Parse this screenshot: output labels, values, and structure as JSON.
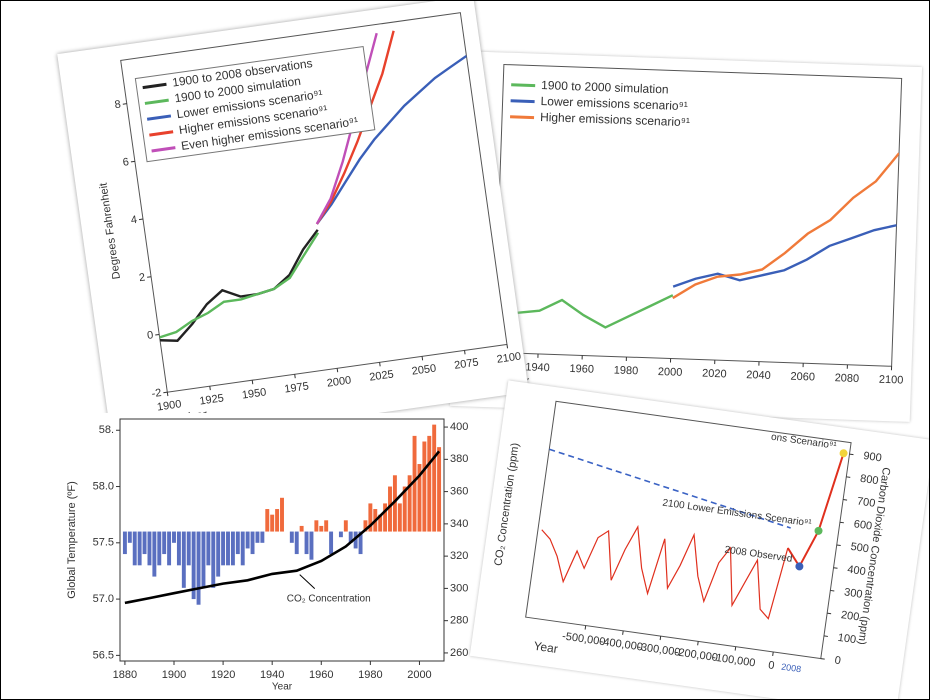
{
  "chart_data": [
    {
      "type": "line",
      "y_label": "Degrees Fahrenheit",
      "x_label": "Year",
      "x": [
        1900,
        1910,
        1920,
        1930,
        1940,
        1950,
        1960,
        1970,
        1980,
        1990,
        2000,
        2010,
        2020,
        2030,
        2040,
        2050,
        2060,
        2070,
        2080,
        2090,
        2100
      ],
      "xlim": [
        1900,
        2100
      ],
      "xticks": [
        1900,
        1925,
        1950,
        1975,
        2000,
        2025,
        2050,
        2075,
        2100
      ],
      "ylim": [
        -2,
        9.5
      ],
      "yticks": [
        -2,
        0,
        2,
        4,
        6,
        8
      ],
      "series": [
        {
          "name": "1900 to 2008 observations",
          "color": "#222222",
          "values": [
            -0.2,
            -0.3,
            0.2,
            0.8,
            1.2,
            0.9,
            0.9,
            1.0,
            1.4,
            2.2,
            2.8,
            null,
            null,
            null,
            null,
            null,
            null,
            null,
            null,
            null,
            null
          ]
        },
        {
          "name": "1900 to 2000 simulation",
          "color": "#5cb85c",
          "values": [
            -0.1,
            0,
            0.3,
            0.5,
            0.8,
            0.8,
            0.9,
            1.0,
            1.3,
            2.0,
            2.7,
            null,
            null,
            null,
            null,
            null,
            null,
            null,
            null,
            null,
            null
          ]
        },
        {
          "name": "Lower emissions scenario⁹¹",
          "color": "#3a5fb8",
          "values": [
            null,
            null,
            null,
            null,
            null,
            null,
            null,
            null,
            null,
            null,
            3.0,
            3.6,
            4.3,
            5.0,
            5.6,
            6.1,
            6.6,
            7.0,
            7.4,
            7.7,
            8.0
          ]
        },
        {
          "name": "Higher emissions scenario⁹¹",
          "color": "#e8412c",
          "values": [
            null,
            null,
            null,
            null,
            null,
            null,
            null,
            null,
            null,
            null,
            3.0,
            3.7,
            4.6,
            5.6,
            6.7,
            7.8,
            9.2,
            null,
            null,
            null,
            null
          ]
        },
        {
          "name": "Even higher emissions scenario⁹¹",
          "color": "#c04fb8",
          "values": [
            null,
            null,
            null,
            null,
            null,
            null,
            null,
            null,
            null,
            null,
            3.0,
            3.8,
            5.0,
            6.4,
            7.8,
            9.2,
            null,
            null,
            null,
            null,
            null
          ]
        }
      ]
    },
    {
      "type": "line",
      "x_label": "Year",
      "x": [
        1920,
        1930,
        1940,
        1950,
        1960,
        1970,
        1980,
        1990,
        2000,
        2010,
        2020,
        2030,
        2040,
        2050,
        2060,
        2070,
        2080,
        2090,
        2100
      ],
      "xlim": [
        1920,
        2100
      ],
      "xticks": [
        1920,
        1940,
        1960,
        1980,
        2000,
        2020,
        2040,
        2060,
        2080,
        2100
      ],
      "ylim": [
        0,
        10
      ],
      "series": [
        {
          "name": "1900 to 2000 simulation",
          "color": "#5cb85c",
          "values": [
            null,
            1.4,
            1.5,
            1.9,
            1.4,
            1.0,
            1.4,
            1.8,
            2.2,
            null,
            null,
            null,
            null,
            null,
            null,
            null,
            null,
            null,
            null
          ]
        },
        {
          "name": "Lower emissions scenario⁹¹",
          "color": "#3a5fb8",
          "values": [
            null,
            null,
            null,
            null,
            null,
            null,
            null,
            null,
            2.5,
            2.8,
            3.0,
            2.8,
            3.0,
            3.2,
            3.6,
            4.1,
            4.4,
            4.7,
            4.9
          ]
        },
        {
          "name": "Higher emissions scenario⁹¹",
          "color": "#f07a3a",
          "values": [
            null,
            null,
            null,
            null,
            null,
            null,
            null,
            null,
            2.1,
            2.6,
            2.9,
            3.0,
            3.2,
            3.8,
            4.5,
            5.0,
            5.8,
            6.4,
            7.4
          ]
        }
      ]
    },
    {
      "type": "bar",
      "y_label": "Global Temperature (ºF)",
      "x_label": "Year",
      "categories": [
        1880,
        1882,
        1884,
        1886,
        1888,
        1890,
        1892,
        1894,
        1896,
        1898,
        1900,
        1902,
        1904,
        1906,
        1908,
        1910,
        1912,
        1914,
        1916,
        1918,
        1920,
        1922,
        1924,
        1926,
        1928,
        1930,
        1932,
        1934,
        1936,
        1938,
        1940,
        1942,
        1944,
        1946,
        1948,
        1950,
        1952,
        1954,
        1956,
        1958,
        1960,
        1962,
        1964,
        1966,
        1968,
        1970,
        1972,
        1974,
        1976,
        1978,
        1980,
        1982,
        1984,
        1986,
        1988,
        1990,
        1992,
        1994,
        1996,
        1998,
        2000,
        2002,
        2004,
        2006,
        2008
      ],
      "values": [
        57.4,
        57.5,
        57.3,
        57.3,
        57.4,
        57.3,
        57.2,
        57.3,
        57.4,
        57.3,
        57.5,
        57.3,
        57.1,
        57.3,
        57.0,
        56.95,
        57.1,
        57.3,
        57.1,
        57.2,
        57.3,
        57.3,
        57.3,
        57.4,
        57.3,
        57.45,
        57.4,
        57.5,
        57.5,
        57.8,
        57.75,
        57.8,
        57.9,
        57.6,
        57.5,
        57.4,
        57.65,
        57.4,
        57.35,
        57.7,
        57.65,
        57.7,
        57.4,
        57.6,
        57.55,
        57.7,
        57.5,
        57.45,
        57.4,
        57.7,
        57.85,
        57.8,
        57.75,
        57.85,
        58.0,
        58.1,
        57.85,
        58.0,
        58.1,
        58.45,
        58.2,
        58.4,
        58.45,
        58.55,
        58.35
      ],
      "baseline": 57.6,
      "color_below": "#5a6fc0",
      "color_above": "#f06a3c",
      "xlim": [
        1878,
        2010
      ],
      "xticks": [
        1880,
        1900,
        1920,
        1940,
        1960,
        1980,
        2000
      ],
      "ylim": [
        56.45,
        58.6
      ],
      "yticks": [
        56.5,
        {
          "value": 57,
          "label": "57.0"
        },
        57.5,
        {
          "value": 58,
          "label": "58.0"
        },
        {
          "value": 58.5,
          "label": "58."
        }
      ],
      "y2lim": [
        255,
        405
      ],
      "y2ticks": [
        260,
        280,
        300,
        320,
        340,
        360,
        380,
        400
      ],
      "line_series": {
        "name": "CO₂ Concentration",
        "color": "#000000",
        "axis": "y2",
        "x": [
          1880,
          1890,
          1900,
          1910,
          1920,
          1930,
          1940,
          1950,
          1960,
          1970,
          1980,
          1990,
          2000,
          2008
        ],
        "values": [
          291,
          294,
          297,
          300,
          303,
          305,
          309,
          311,
          317,
          326,
          339,
          354,
          370,
          385
        ]
      }
    },
    {
      "type": "line",
      "y_label": "CO₂ Concentration (ppm)",
      "y2_label": "Carbon Dioxide Concentration (ppm)",
      "x_label": "Year",
      "x": [
        -650000,
        -625000,
        -600000,
        -575000,
        -550000,
        -525000,
        -500000,
        -475000,
        -450000,
        -425000,
        -400000,
        -375000,
        -350000,
        -325000,
        -300000,
        -275000,
        -250000,
        -225000,
        -200000,
        -175000,
        -150000,
        -125000,
        -100000,
        -75000,
        -50000,
        -25000,
        0
      ],
      "xlim": [
        -660000,
        0
      ],
      "xticks": [
        {
          "value": -500000,
          "label": "-500,000"
        },
        {
          "value": -400000,
          "label": "-400,000"
        },
        {
          "value": -300000,
          "label": "-300,000"
        },
        {
          "value": -200000,
          "label": "-200,000"
        },
        {
          "value": -100000,
          "label": "-100,000"
        },
        0
      ],
      "x_end_label": "2008",
      "ylim": [
        150,
        420
      ],
      "series": [
        {
          "name": "CO₂",
          "color": "#e0301e",
          "values": [
            260,
            250,
            230,
            200,
            240,
            220,
            260,
            270,
            210,
            250,
            280,
            230,
            200,
            270,
            210,
            240,
            280,
            230,
            200,
            250,
            270,
            200,
            230,
            260,
            200,
            190,
            280
          ]
        }
      ],
      "trend_line": {
        "color": "#3a62c4",
        "values": [
          360,
          305
        ]
      },
      "y2lim": [
        0,
        950
      ],
      "y2ticks": [
        0,
        100,
        200,
        300,
        400,
        500,
        600,
        700,
        800,
        900
      ],
      "points": {
        "categories": [
          "2008 Observed",
          "2100 Lower Emissions Scenario⁹¹",
          "ons Scenario⁹¹"
        ],
        "values": [
          385,
          550,
          900
        ],
        "colors": [
          "#3a5fb8",
          "#5cb85c",
          "#f2d43a"
        ],
        "line_color": "#e0301e"
      }
    }
  ]
}
